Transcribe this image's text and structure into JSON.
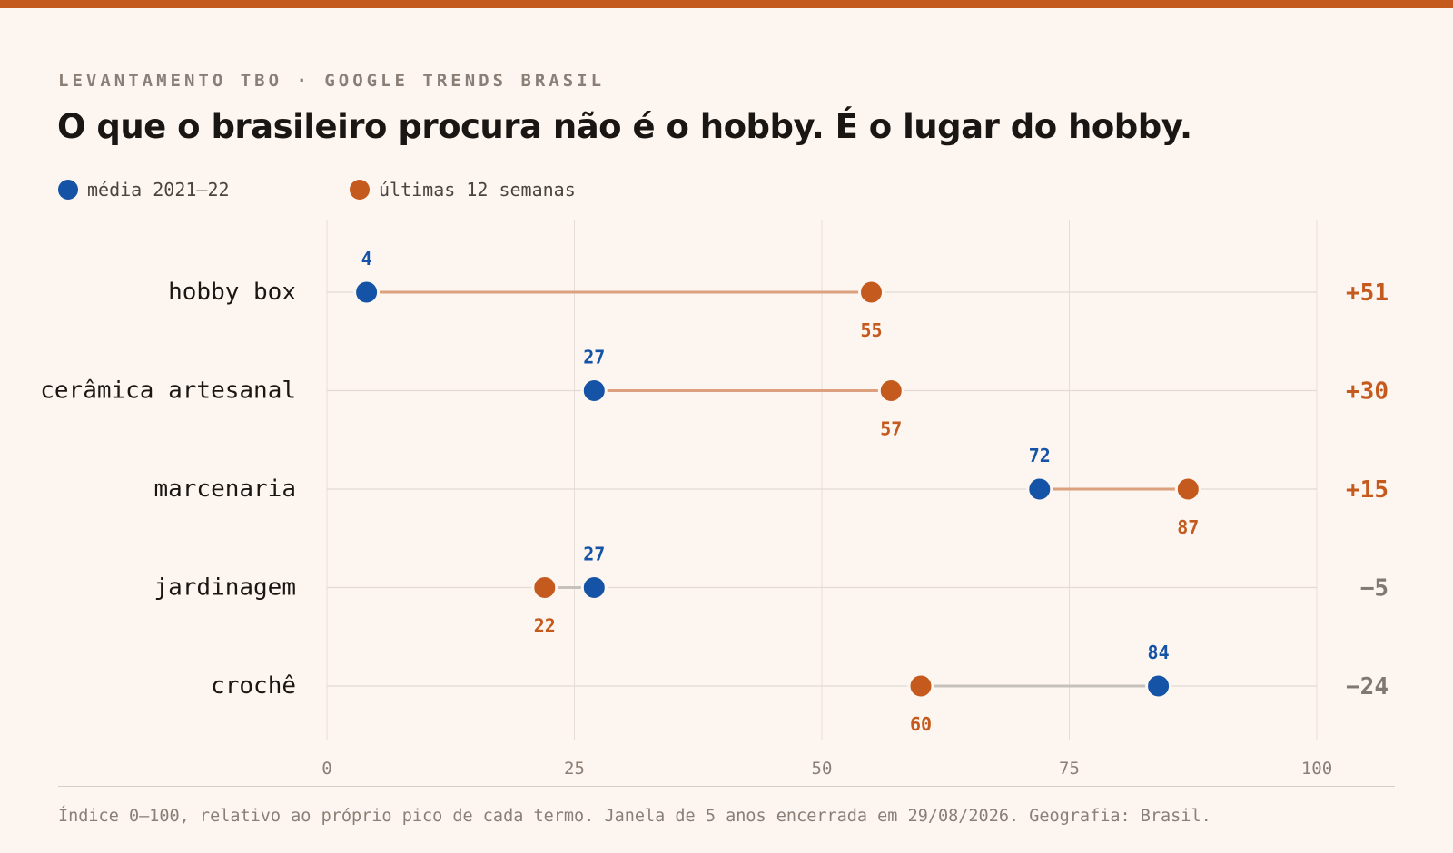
{
  "kicker": "LEVANTAMENTO TBO · GOOGLE TRENDS BRASIL",
  "title": "O que o brasileiro procura não é o hobby. É o lugar do hobby.",
  "colors": {
    "accent": "#c55a1e",
    "baseline": "#1553a6",
    "recent": "#c55a1e",
    "connector_up": "#dca07c",
    "connector_down": "#c7c1bc",
    "delta_down": "#7f7873",
    "background": "#fdf6f0"
  },
  "footnote": "Índice 0–100, relativo ao próprio pico de cada termo. Janela de 5 anos encerrada em 29/08/2026. Geografia: Brasil.",
  "chart_data": {
    "type": "dumbbell",
    "xlim": [
      0,
      100
    ],
    "xticks": [
      0,
      25,
      50,
      75,
      100
    ],
    "grid": true,
    "legend_position": "top-left",
    "series": [
      {
        "name": "média 2021–22",
        "color": "#1553a6"
      },
      {
        "name": "últimas 12 semanas",
        "color": "#c55a1e"
      }
    ],
    "rows": [
      {
        "label": "hobby box",
        "baseline": 4,
        "recent": 55,
        "delta": "+51"
      },
      {
        "label": "cerâmica artesanal",
        "baseline": 27,
        "recent": 57,
        "delta": "+30"
      },
      {
        "label": "marcenaria",
        "baseline": 72,
        "recent": 87,
        "delta": "+15"
      },
      {
        "label": "jardinagem",
        "baseline": 27,
        "recent": 22,
        "delta": "−5"
      },
      {
        "label": "crochê",
        "baseline": 84,
        "recent": 60,
        "delta": "−24"
      }
    ]
  }
}
